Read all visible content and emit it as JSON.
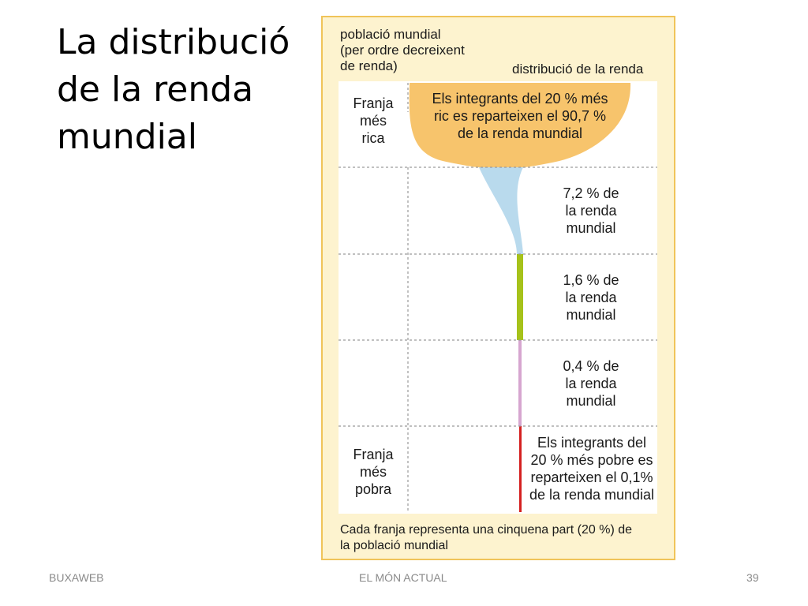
{
  "slide": {
    "title_lines": [
      "La distribució",
      "de la renda",
      "mundial"
    ]
  },
  "diagram": {
    "header_left_lines": [
      "població mundial",
      "(per ordre decreixent",
      "de renda)"
    ],
    "header_right": "distribució de la renda",
    "left_labels": {
      "top_lines": [
        "Franja",
        "més",
        "rica"
      ],
      "bottom_lines": [
        "Franja",
        "més",
        "pobra"
      ]
    },
    "bands": [
      {
        "share_percent": 90.7,
        "color": "#f7c46c",
        "lines": [
          "Els integrants del 20 % més",
          "ric es reparteixen el 90,7 %",
          "de la renda mundial"
        ]
      },
      {
        "share_percent": 7.2,
        "color": "#b9daed",
        "lines": [
          "7,2 % de",
          "la renda",
          "mundial"
        ]
      },
      {
        "share_percent": 1.6,
        "color": "#a6c21a",
        "lines": [
          "1,6 % de",
          "la renda",
          "mundial"
        ]
      },
      {
        "share_percent": 0.4,
        "color": "#d6a6cf",
        "lines": [
          "0,4 % de",
          "la renda",
          "mundial"
        ]
      },
      {
        "share_percent": 0.1,
        "color": "#d42020",
        "lines": [
          "Els integrants del",
          "20 % més pobre es",
          "reparteixen el 0,1%",
          "de la renda mundial"
        ]
      }
    ],
    "footnote_lines": [
      "Cada franja representa una cinquena part (20 %) de",
      "la població mundial"
    ],
    "panel_colors": {
      "background": "#fdf3cf",
      "border": "#f0c45a",
      "grid": "#9a9a9a"
    }
  },
  "footer": {
    "left": "BUXAWEB",
    "center": "EL MÓN ACTUAL",
    "page_number": "39"
  }
}
